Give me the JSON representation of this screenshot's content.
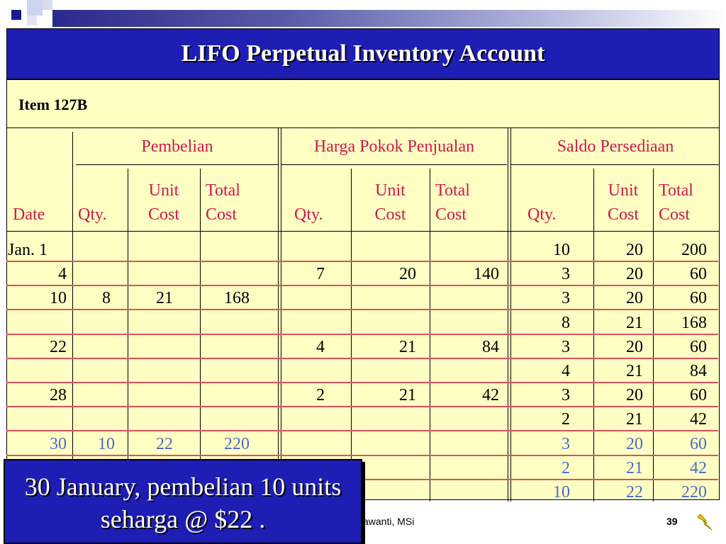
{
  "title": "LIFO Perpetual Inventory Account",
  "item": "Item  127B",
  "groups": {
    "purchases": "Pembelian",
    "cogs": "Harga Pokok Penjualan",
    "balance": "Saldo Persediaan"
  },
  "columns": {
    "date": "Date",
    "qty": "Qty.",
    "unit_1": "Unit",
    "unit_2": "Cost",
    "total_1": "Total",
    "total_2": "Cost"
  },
  "rows": [
    {
      "date": "Jan.  1",
      "p_qty": "",
      "p_unit": "",
      "p_total": "",
      "s_qty": "",
      "s_unit": "",
      "s_total": "",
      "b_qty": "10",
      "b_unit": "20",
      "b_total": "200",
      "style": "blk"
    },
    {
      "date": "4",
      "p_qty": "",
      "p_unit": "",
      "p_total": "",
      "s_qty": "7",
      "s_unit": "20",
      "s_total": "140",
      "b_qty": "3",
      "b_unit": "20",
      "b_total": "60",
      "style": "blk"
    },
    {
      "date": "10",
      "p_qty": "8",
      "p_unit": "21",
      "p_total": "168",
      "s_qty": "",
      "s_unit": "",
      "s_total": "",
      "b_qty": "3",
      "b_unit": "20",
      "b_total": "60",
      "style": "blk"
    },
    {
      "date": "",
      "p_qty": "",
      "p_unit": "",
      "p_total": "",
      "s_qty": "",
      "s_unit": "",
      "s_total": "",
      "b_qty": "8",
      "b_unit": "21",
      "b_total": "168",
      "style": "blk"
    },
    {
      "date": "22",
      "p_qty": "",
      "p_unit": "",
      "p_total": "",
      "s_qty": "4",
      "s_unit": "21",
      "s_total": "84",
      "b_qty": "3",
      "b_unit": "20",
      "b_total": "60",
      "style": "blk"
    },
    {
      "date": "",
      "p_qty": "",
      "p_unit": "",
      "p_total": "",
      "s_qty": "",
      "s_unit": "",
      "s_total": "",
      "b_qty": "4",
      "b_unit": "21",
      "b_total": "84",
      "style": "blk"
    },
    {
      "date": "28",
      "p_qty": "",
      "p_unit": "",
      "p_total": "",
      "s_qty": "2",
      "s_unit": "21",
      "s_total": "42",
      "b_qty": "3",
      "b_unit": "20",
      "b_total": "60",
      "style": "blk"
    },
    {
      "date": "",
      "p_qty": "",
      "p_unit": "",
      "p_total": "",
      "s_qty": "",
      "s_unit": "",
      "s_total": "",
      "b_qty": "2",
      "b_unit": "21",
      "b_total": "42",
      "style": "blk"
    },
    {
      "date": "30",
      "p_qty": "10",
      "p_unit": "22",
      "p_total": "220",
      "s_qty": "",
      "s_unit": "",
      "s_total": "",
      "b_qty": "3",
      "b_unit": "20",
      "b_total": "60",
      "style": "blue"
    },
    {
      "date": "",
      "p_qty": "",
      "p_unit": "",
      "p_total": "",
      "s_qty": "",
      "s_unit": "",
      "s_total": "",
      "b_qty": "2",
      "b_unit": "21",
      "b_total": "42",
      "style": "blue"
    },
    {
      "date": "",
      "p_qty": "",
      "p_unit": "",
      "p_total": "",
      "s_qty": "",
      "s_unit": "",
      "s_total": "",
      "b_qty": "10",
      "b_unit": "22",
      "b_total": "220",
      "style": "blue"
    }
  ],
  "callout": "30 January, pembelian 10 units seharga @ $22 .",
  "footer": {
    "author": "awanti, MSi",
    "page": "39"
  },
  "colors": {
    "title_bg": "#1e1eb4",
    "panel_bg": "#ffffc4",
    "header_text": "#cc1a4a",
    "highlight_text": "#4a6bc8",
    "row_lines": "#e05060"
  },
  "icons": [
    "lightning-bolt-icon"
  ]
}
